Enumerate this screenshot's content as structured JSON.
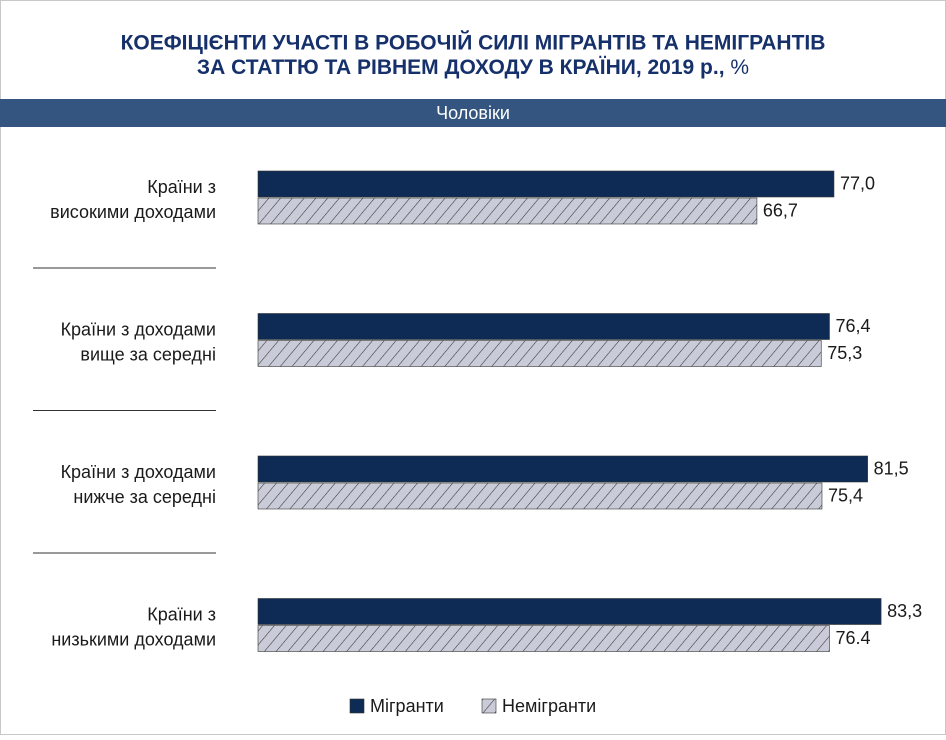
{
  "chart_data": {
    "type": "bar",
    "orientation": "horizontal",
    "title": [
      "КОЕФІЦІЄНТИ УЧАСТІ В РОБОЧІЙ СИЛІ МІГРАНТІВ ТА НЕМІГРАНТІВ",
      "ЗА СТАТТЮ ТА РІВНЕМ ДОХОДУ В КРАЇНИ, 2019 р.,"
    ],
    "unit": "%",
    "subtitle": "Чоловіки",
    "categories": [
      [
        "Країни з",
        "високими доходами"
      ],
      [
        "Країни з доходами",
        "вище за середні"
      ],
      [
        "Країни з доходами",
        "нижче за середні"
      ],
      [
        "Країни з",
        "низькими доходами"
      ]
    ],
    "series": [
      {
        "name": "Мігранти",
        "color": "#0d2b55",
        "pattern": "solid",
        "values": [
          77.0,
          76.4,
          81.5,
          83.3
        ],
        "value_labels": [
          "77,0",
          "76,4",
          "81,5",
          "83,3"
        ]
      },
      {
        "name": "Немігранти",
        "color": "#c9ccd8",
        "pattern": "hatch",
        "values": [
          66.7,
          75.3,
          75.4,
          76.4
        ],
        "value_labels": [
          "66,7",
          "75,3",
          "75,4",
          "76.4"
        ]
      }
    ],
    "legend": "bottom"
  }
}
